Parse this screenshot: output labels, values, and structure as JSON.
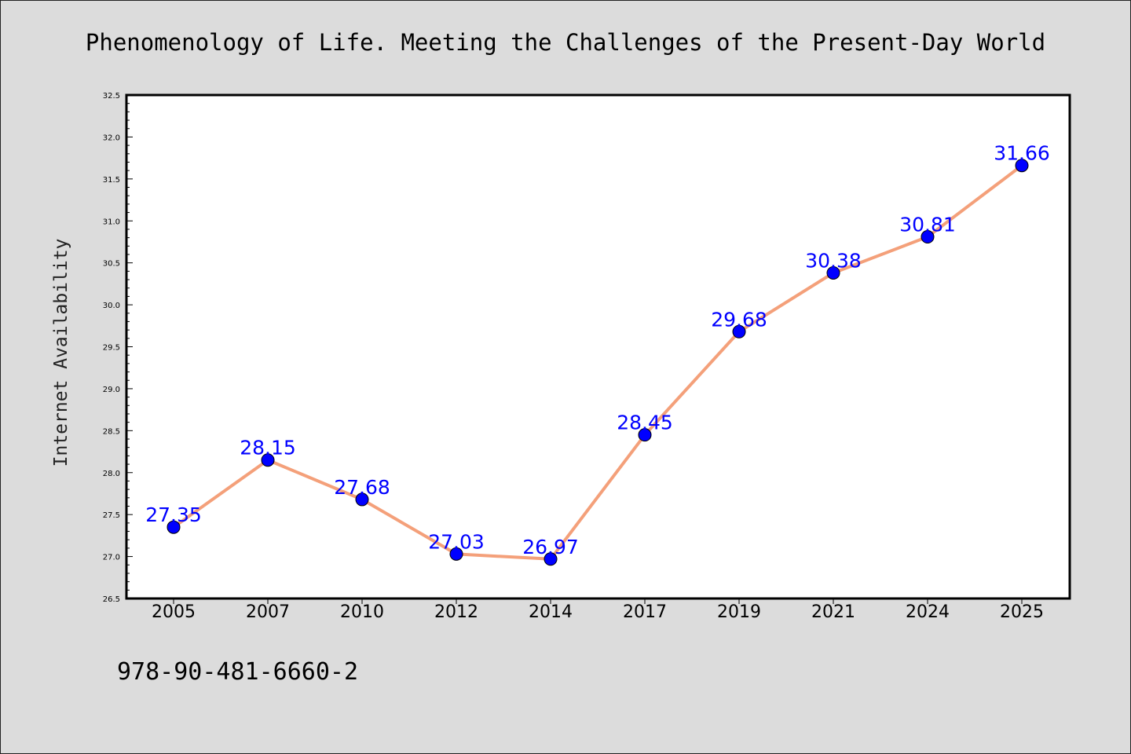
{
  "chart_data": {
    "type": "line",
    "title": "Phenomenology of Life. Meeting the Challenges of the Present-Day World",
    "ylabel": "Internet Availability",
    "xlabel": "",
    "categories": [
      "2005",
      "2007",
      "2010",
      "2012",
      "2014",
      "2017",
      "2019",
      "2021",
      "2024",
      "2025"
    ],
    "series": [
      {
        "values": [
          27.35,
          28.15,
          27.68,
          27.03,
          26.97,
          28.45,
          29.68,
          30.38,
          30.81,
          31.66
        ],
        "labels": [
          "27.35",
          "28.15",
          "27.68",
          "27.03",
          "26.97",
          "28.45",
          "29.68",
          "30.38",
          "30.81",
          "31.66"
        ],
        "line_color": "#f4a07a",
        "marker_color": "#0000ff"
      }
    ],
    "ylim": [
      26.5,
      32.5
    ],
    "yticks": [
      "26.5",
      "27.0",
      "27.5",
      "28.0",
      "28.5",
      "29.0",
      "29.5",
      "30.0",
      "30.5",
      "31.0",
      "31.5",
      "32.0",
      "32.5"
    ],
    "grid": false,
    "legend": "none"
  },
  "footer": {
    "isbn": "978-90-481-6660-2"
  },
  "colors": {
    "background": "#dcdcdc",
    "plot_area": "#ffffff",
    "line": "#f4a07a",
    "marker": "#0000ff",
    "data_label": "#0000ff"
  }
}
